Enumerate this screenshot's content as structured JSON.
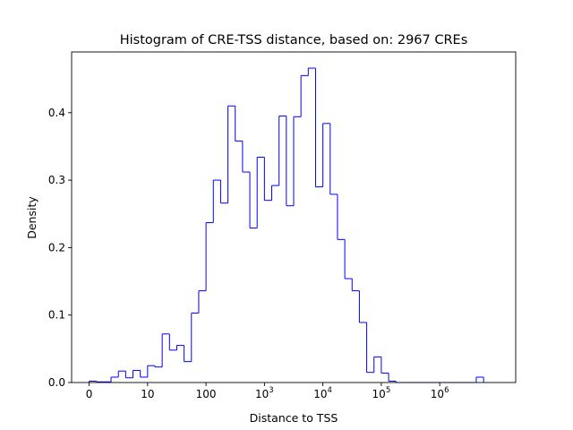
{
  "chart_data": {
    "type": "histogram",
    "title": "Histogram of CRE-TSS distance, based on: 2967 CREs",
    "xlabel": "Distance to TSS",
    "ylabel": "Density",
    "x_scale": "symlog",
    "x_tick_labels": [
      {
        "value": 0,
        "label": "0"
      },
      {
        "value": 10,
        "label": "10"
      },
      {
        "value": 100,
        "label": "100"
      },
      {
        "value": 1000,
        "base": "10",
        "exp": "3"
      },
      {
        "value": 10000,
        "base": "10",
        "exp": "4"
      },
      {
        "value": 100000,
        "base": "10",
        "exp": "5"
      },
      {
        "value": 1000000,
        "base": "10",
        "exp": "6"
      }
    ],
    "y_ticks": [
      {
        "value": 0.0,
        "label": "0.0"
      },
      {
        "value": 0.1,
        "label": "0.1"
      },
      {
        "value": 0.2,
        "label": "0.2"
      },
      {
        "value": 0.3,
        "label": "0.3"
      },
      {
        "value": 0.4,
        "label": "0.4"
      }
    ],
    "ylim": [
      0,
      0.49
    ],
    "xlim_log10": [
      -0.3,
      7.3
    ],
    "bin_start_log10": 0,
    "bin_width_log10": 0.125,
    "densities": [
      0.002,
      0.001,
      0.001,
      0.008,
      0.017,
      0.007,
      0.018,
      0.008,
      0.025,
      0.023,
      0.072,
      0.048,
      0.055,
      0.031,
      0.103,
      0.136,
      0.237,
      0.3,
      0.266,
      0.41,
      0.358,
      0.312,
      0.229,
      0.334,
      0.27,
      0.292,
      0.395,
      0.262,
      0.394,
      0.455,
      0.466,
      0.29,
      0.384,
      0.279,
      0.212,
      0.154,
      0.136,
      0.089,
      0.015,
      0.038,
      0.014,
      0.002,
      0.0,
      0.0,
      0.0,
      0.0,
      0.0,
      0.0,
      0.0,
      0.0,
      0.0,
      0.0,
      0.0,
      0.008
    ],
    "line_color": "#0000ff",
    "grid": false,
    "legend": "none"
  }
}
